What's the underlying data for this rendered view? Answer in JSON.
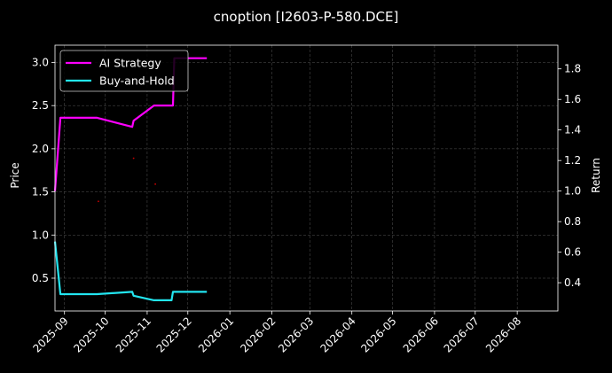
{
  "chart_data": {
    "type": "line",
    "title": "cnoption [I2603-P-580.DCE]",
    "xlabel": "",
    "ylabel": "Price",
    "y2label": "Return",
    "xlim": [
      "2025-08-25",
      "2026-08-31"
    ],
    "ylim": [
      0.12,
      3.2
    ],
    "y2lim": [
      0.215,
      1.955
    ],
    "grid": true,
    "legend_position": "top-left",
    "x_ticks": [
      "2025-09",
      "2025-10",
      "2025-11",
      "2025-12",
      "2026-01",
      "2026-02",
      "2026-03",
      "2026-04",
      "2026-05",
      "2026-06",
      "2026-07",
      "2026-08"
    ],
    "y_ticks": [
      "0.5",
      "1.0",
      "1.5",
      "2.0",
      "2.5",
      "3.0"
    ],
    "y2_ticks": [
      "0.4",
      "0.6",
      "0.8",
      "1.0",
      "1.2",
      "1.4",
      "1.6",
      "1.8"
    ],
    "series": [
      {
        "name": "AI Strategy",
        "axis": "right",
        "color": "#ff00ff",
        "points": [
          [
            "2025-08-25",
            1.0
          ],
          [
            "2025-08-29",
            1.48
          ],
          [
            "2025-09-25",
            1.48
          ],
          [
            "2025-10-21",
            1.42
          ],
          [
            "2025-10-22",
            1.46
          ],
          [
            "2025-11-06",
            1.56
          ],
          [
            "2025-11-20",
            1.56
          ],
          [
            "2025-11-21",
            1.87
          ],
          [
            "2025-12-15",
            1.87
          ]
        ]
      },
      {
        "name": "Buy-and-Hold",
        "axis": "right",
        "color": "#22e5f0",
        "points": [
          [
            "2025-08-25",
            0.67
          ],
          [
            "2025-08-29",
            0.325
          ],
          [
            "2025-09-25",
            0.325
          ],
          [
            "2025-10-21",
            0.34
          ],
          [
            "2025-10-22",
            0.315
          ],
          [
            "2025-11-06",
            0.285
          ],
          [
            "2025-11-19",
            0.285
          ],
          [
            "2025-11-20",
            0.34
          ],
          [
            "2025-12-15",
            0.34
          ]
        ]
      },
      {
        "name": "",
        "axis": "left",
        "type": "scatter",
        "color": "#cc0000",
        "points": [
          [
            "2025-09-26",
            1.39
          ],
          [
            "2025-10-22",
            1.89
          ],
          [
            "2025-11-07",
            1.59
          ]
        ]
      }
    ]
  }
}
